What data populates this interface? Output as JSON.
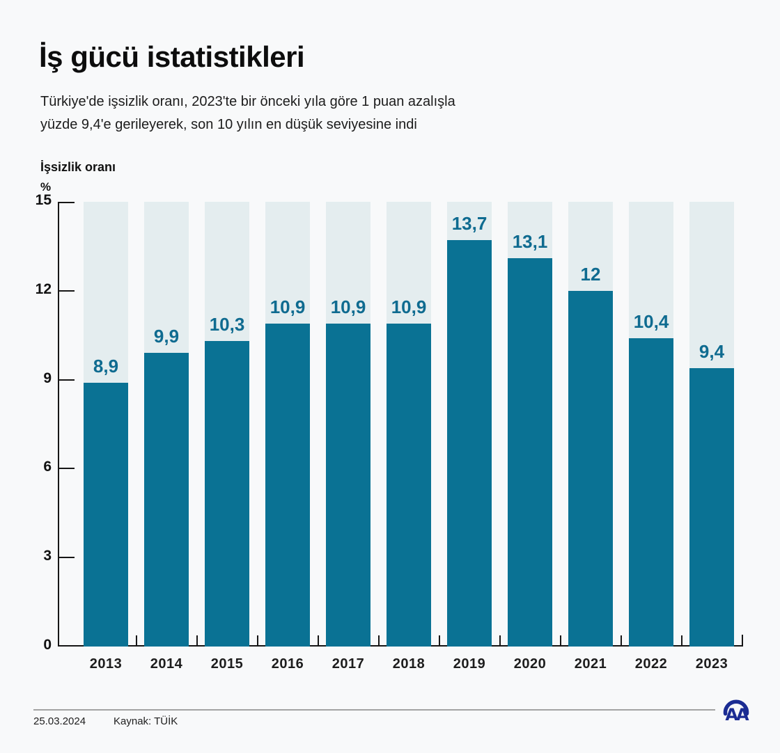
{
  "page": {
    "title": "İş gücü istatistikleri",
    "subtitle_lines": [
      "Türkiye'de işsizlik oranı, 2023'te bir önceki yıla göre 1 puan azalışla",
      "yüzde 9,4'e gerileyerek, son 10 yılın en düşük seviyesine indi"
    ],
    "footer": {
      "date": "25.03.2024",
      "source": "Kaynak: TÜİK",
      "logo_name": "anadolu-agency-logo",
      "logo_color": "#1b2c93"
    }
  },
  "chart_data": {
    "type": "bar",
    "title": "İşsizlik oranı",
    "unit_label": "%",
    "categories": [
      "2013",
      "2014",
      "2015",
      "2016",
      "2017",
      "2018",
      "2019",
      "2020",
      "2021",
      "2022",
      "2023"
    ],
    "values": [
      8.9,
      9.9,
      10.3,
      10.9,
      10.9,
      10.9,
      13.7,
      13.1,
      12,
      10.4,
      9.4
    ],
    "value_labels": [
      "8,9",
      "9,9",
      "10,3",
      "10,9",
      "10,9",
      "10,9",
      "13,7",
      "13,1",
      "12",
      "10,4",
      "9,4"
    ],
    "xlabel": "",
    "ylabel": "İşsizlik oranı (%)",
    "ylim": [
      0,
      15
    ],
    "yticks": [
      0,
      3,
      6,
      9,
      12,
      15
    ],
    "ytick_labels": [
      "0",
      "3",
      "6",
      "9",
      "12",
      "15"
    ],
    "grid": false,
    "legend": "none",
    "bar_color": "#0a7294",
    "bar_bg_color": "#e4edef",
    "value_label_color": "#0f6b90"
  }
}
